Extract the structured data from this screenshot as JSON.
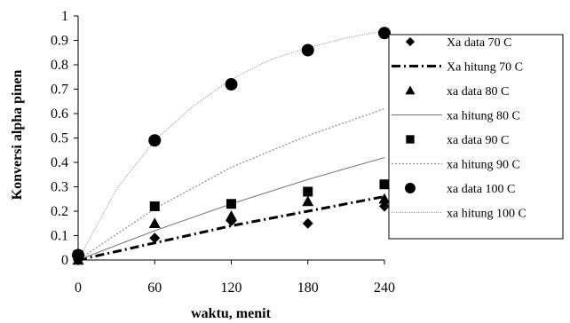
{
  "chart_data": {
    "type": "scatter",
    "xlabel": "waktu, menit",
    "ylabel": "Konversi alpha pinen",
    "xlim": [
      0,
      240
    ],
    "ylim": [
      0,
      1
    ],
    "xticks": [
      "0",
      "60",
      "120",
      "180",
      "240"
    ],
    "yticks": [
      "0",
      "0.1",
      "0.2",
      "0.3",
      "0.4",
      "0.5",
      "0.6",
      "0.7",
      "0.8",
      "0.9",
      "1"
    ],
    "grid": false,
    "legend_position": "right",
    "series": [
      {
        "name": "Xa data 70 C",
        "kind": "points",
        "marker": "diamond",
        "x": [
          0,
          60,
          120,
          180,
          240
        ],
        "y": [
          0.0,
          0.09,
          0.16,
          0.15,
          0.22
        ]
      },
      {
        "name": "Xa hitung 70 C",
        "kind": "line",
        "style": "dashdot",
        "x": [
          0,
          60,
          120,
          180,
          240
        ],
        "y": [
          0.0,
          0.07,
          0.14,
          0.2,
          0.26
        ]
      },
      {
        "name": "xa data 80 C",
        "kind": "points",
        "marker": "triangle",
        "x": [
          0,
          60,
          120,
          180,
          240
        ],
        "y": [
          0.0,
          0.15,
          0.18,
          0.24,
          0.25
        ]
      },
      {
        "name": "xa hitung 80 C",
        "kind": "line",
        "style": "solid-thin",
        "x": [
          0,
          60,
          120,
          180,
          240
        ],
        "y": [
          0.0,
          0.12,
          0.23,
          0.33,
          0.42
        ]
      },
      {
        "name": "xa data 90 C",
        "kind": "points",
        "marker": "square",
        "x": [
          0,
          60,
          120,
          180,
          240
        ],
        "y": [
          0.02,
          0.22,
          0.23,
          0.28,
          0.31
        ]
      },
      {
        "name": "xa hitung 90 C",
        "kind": "line",
        "style": "dotted",
        "x": [
          0,
          60,
          120,
          180,
          240
        ],
        "y": [
          0.0,
          0.21,
          0.38,
          0.51,
          0.62
        ]
      },
      {
        "name": "xa data 100 C",
        "kind": "points",
        "marker": "circle",
        "x": [
          0,
          60,
          120,
          180,
          240
        ],
        "y": [
          0.02,
          0.49,
          0.72,
          0.86,
          0.93
        ]
      },
      {
        "name": "xa hitung 100 C",
        "kind": "line",
        "style": "dotted-fine",
        "x": [
          0,
          30,
          60,
          90,
          120,
          150,
          180,
          210,
          240
        ],
        "y": [
          0.0,
          0.29,
          0.49,
          0.63,
          0.74,
          0.82,
          0.87,
          0.91,
          0.94
        ]
      }
    ]
  }
}
